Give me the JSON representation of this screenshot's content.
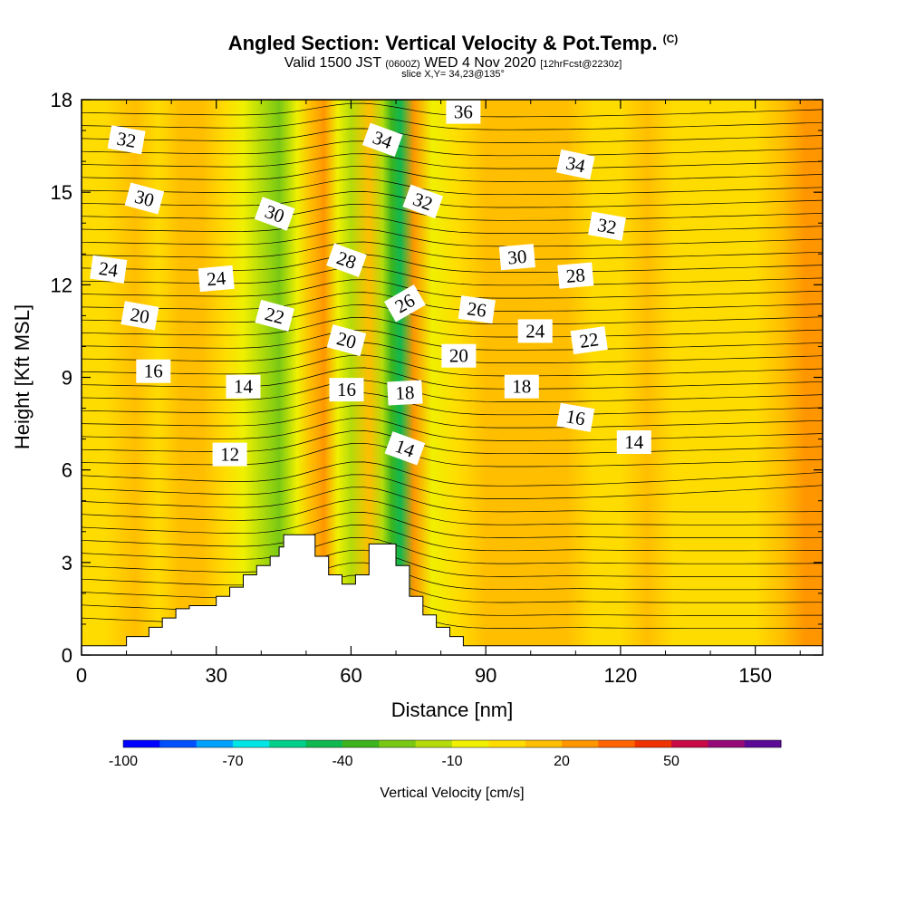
{
  "title": {
    "main": "Angled Section: Vertical Velocity & Pot.Temp.",
    "copyright": "(C)",
    "valid_prefix": "Valid 1500 JST",
    "valid_utc": "(0600Z)",
    "valid_date": "WED 4 Nov 2020",
    "forecast": "[12hrFcst@2230z]",
    "slice": "slice X,Y= 34,23@135°"
  },
  "chart_data": {
    "type": "heatmap",
    "xlabel": "Distance [nm]",
    "ylabel": "Height [Kft MSL]",
    "xlim": [
      0,
      165
    ],
    "ylim": [
      0,
      18
    ],
    "xticks": [
      0,
      30,
      60,
      90,
      120,
      150
    ],
    "yticks": [
      0,
      3,
      6,
      9,
      12,
      15,
      18
    ],
    "colorbar": {
      "label": "Vertical Velocity [cm/s]",
      "tick_labels": [
        "-100",
        "-70",
        "-40",
        "-10",
        "20",
        "50"
      ],
      "tick_values": [
        -100,
        -70,
        -40,
        -10,
        20,
        50
      ],
      "levels": [
        -100,
        -90,
        -80,
        -70,
        -60,
        -50,
        -40,
        -30,
        -20,
        -10,
        0,
        10,
        20,
        30,
        40,
        50,
        60,
        70
      ],
      "colors": [
        "#0000ff",
        "#0050ff",
        "#00a0ff",
        "#00e6e6",
        "#00d08a",
        "#10b850",
        "#3cb41e",
        "#78c814",
        "#b4dc0a",
        "#f0f000",
        "#ffdc00",
        "#ffbe00",
        "#ff9600",
        "#ff6400",
        "#f03200",
        "#c80a46",
        "#960a78",
        "#5a0a96"
      ]
    },
    "velocity_columns": [
      {
        "x": 5,
        "v": 5
      },
      {
        "x": 12,
        "v": 10
      },
      {
        "x": 17,
        "v": 5
      },
      {
        "x": 22,
        "v": 12
      },
      {
        "x": 27,
        "v": 14
      },
      {
        "x": 32,
        "v": 6
      },
      {
        "x": 36,
        "v": -8
      },
      {
        "x": 40,
        "v": -15
      },
      {
        "x": 44,
        "v": -28
      },
      {
        "x": 48,
        "v": -10
      },
      {
        "x": 51,
        "v": 10
      },
      {
        "x": 54,
        "v": 22
      },
      {
        "x": 57,
        "v": -6
      },
      {
        "x": 60,
        "v": -12
      },
      {
        "x": 64,
        "v": 18
      },
      {
        "x": 67,
        "v": -20
      },
      {
        "x": 69,
        "v": -38
      },
      {
        "x": 71,
        "v": -44
      },
      {
        "x": 74,
        "v": 24
      },
      {
        "x": 78,
        "v": -6
      },
      {
        "x": 84,
        "v": 8
      },
      {
        "x": 90,
        "v": 10
      },
      {
        "x": 96,
        "v": 12
      },
      {
        "x": 102,
        "v": 18
      },
      {
        "x": 108,
        "v": 10
      },
      {
        "x": 114,
        "v": 6
      },
      {
        "x": 120,
        "v": 2
      },
      {
        "x": 126,
        "v": 10
      },
      {
        "x": 132,
        "v": 4
      },
      {
        "x": 138,
        "v": 8
      },
      {
        "x": 144,
        "v": 2
      },
      {
        "x": 150,
        "v": 0
      },
      {
        "x": 156,
        "v": 12
      },
      {
        "x": 161,
        "v": 22
      }
    ],
    "terrain": [
      [
        0,
        0.3
      ],
      [
        10,
        0.3
      ],
      [
        10,
        0.6
      ],
      [
        15,
        0.6
      ],
      [
        15,
        0.9
      ],
      [
        18,
        0.9
      ],
      [
        18,
        1.2
      ],
      [
        21,
        1.2
      ],
      [
        21,
        1.5
      ],
      [
        24,
        1.5
      ],
      [
        24,
        1.6
      ],
      [
        30,
        1.6
      ],
      [
        30,
        1.9
      ],
      [
        33,
        1.9
      ],
      [
        33,
        2.2
      ],
      [
        36,
        2.2
      ],
      [
        36,
        2.6
      ],
      [
        39,
        2.6
      ],
      [
        39,
        2.9
      ],
      [
        42,
        2.9
      ],
      [
        42,
        3.2
      ],
      [
        44,
        3.2
      ],
      [
        44,
        3.5
      ],
      [
        45,
        3.5
      ],
      [
        45,
        3.9
      ],
      [
        52,
        3.9
      ],
      [
        52,
        3.2
      ],
      [
        55,
        3.2
      ],
      [
        55,
        2.6
      ],
      [
        58,
        2.6
      ],
      [
        58,
        2.3
      ],
      [
        61,
        2.3
      ],
      [
        61,
        2.6
      ],
      [
        64,
        2.6
      ],
      [
        64,
        3.6
      ],
      [
        70,
        3.6
      ],
      [
        70,
        2.9
      ],
      [
        73,
        2.9
      ],
      [
        73,
        1.9
      ],
      [
        76,
        1.9
      ],
      [
        76,
        1.3
      ],
      [
        79,
        1.3
      ],
      [
        79,
        0.9
      ],
      [
        82,
        0.9
      ],
      [
        82,
        0.6
      ],
      [
        85,
        0.6
      ],
      [
        85,
        0.3
      ],
      [
        165,
        0.3
      ]
    ],
    "isentropes": [
      14,
      16,
      18,
      20,
      22,
      24,
      26,
      28,
      30,
      32,
      34,
      36
    ],
    "contour_labels": [
      {
        "text": "12",
        "x": 33,
        "y": 6.5,
        "angle": 0
      },
      {
        "text": "14",
        "x": 36,
        "y": 8.7,
        "angle": 0
      },
      {
        "text": "16",
        "x": 16,
        "y": 9.2,
        "angle": 0
      },
      {
        "text": "20",
        "x": 13,
        "y": 11.0,
        "angle": 10
      },
      {
        "text": "24",
        "x": 6,
        "y": 12.5,
        "angle": 8
      },
      {
        "text": "24",
        "x": 30,
        "y": 12.2,
        "angle": -5
      },
      {
        "text": "22",
        "x": 43,
        "y": 11.0,
        "angle": 15
      },
      {
        "text": "30",
        "x": 14,
        "y": 14.8,
        "angle": 15
      },
      {
        "text": "30",
        "x": 43,
        "y": 14.3,
        "angle": 20
      },
      {
        "text": "32",
        "x": 10,
        "y": 16.7,
        "angle": 10
      },
      {
        "text": "28",
        "x": 59,
        "y": 12.8,
        "angle": 20
      },
      {
        "text": "20",
        "x": 59,
        "y": 10.2,
        "angle": 15
      },
      {
        "text": "16",
        "x": 59,
        "y": 8.6,
        "angle": 0
      },
      {
        "text": "34",
        "x": 67,
        "y": 16.7,
        "angle": 20
      },
      {
        "text": "36",
        "x": 85,
        "y": 17.6,
        "angle": 0
      },
      {
        "text": "32",
        "x": 76,
        "y": 14.7,
        "angle": 20
      },
      {
        "text": "26",
        "x": 72,
        "y": 11.4,
        "angle": -30
      },
      {
        "text": "18",
        "x": 72,
        "y": 8.5,
        "angle": -3
      },
      {
        "text": "14",
        "x": 72,
        "y": 6.7,
        "angle": 20
      },
      {
        "text": "20",
        "x": 84,
        "y": 9.7,
        "angle": 0
      },
      {
        "text": "26",
        "x": 88,
        "y": 11.2,
        "angle": 8
      },
      {
        "text": "30",
        "x": 97,
        "y": 12.9,
        "angle": -5
      },
      {
        "text": "24",
        "x": 101,
        "y": 10.5,
        "angle": 0
      },
      {
        "text": "18",
        "x": 98,
        "y": 8.7,
        "angle": 0
      },
      {
        "text": "34",
        "x": 110,
        "y": 15.9,
        "angle": 12
      },
      {
        "text": "32",
        "x": 117,
        "y": 13.9,
        "angle": 10
      },
      {
        "text": "28",
        "x": 110,
        "y": 12.3,
        "angle": -5
      },
      {
        "text": "22",
        "x": 113,
        "y": 10.2,
        "angle": -8
      },
      {
        "text": "16",
        "x": 110,
        "y": 7.7,
        "angle": 10
      },
      {
        "text": "14",
        "x": 123,
        "y": 6.9,
        "angle": 0
      }
    ]
  }
}
